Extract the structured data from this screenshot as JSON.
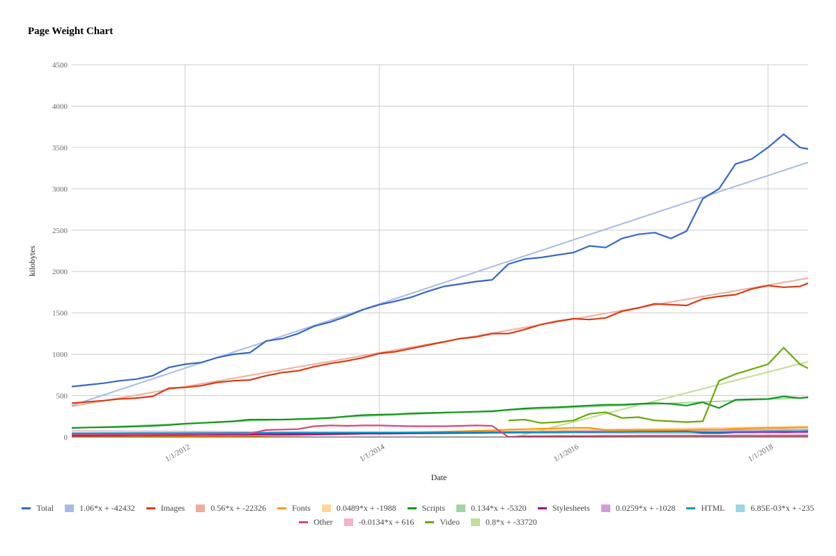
{
  "chart_data": {
    "type": "line",
    "title": "Page Weight Chart",
    "x_label": "Date",
    "y_label": "kilobytes",
    "grid": true,
    "ylim": [
      0,
      4500
    ],
    "yticks": [
      0,
      500,
      1000,
      1500,
      2000,
      2500,
      3000,
      3500,
      4000,
      4500
    ],
    "xlim": [
      "11/1/2010",
      "6/1/2018"
    ],
    "xticks": [
      "1/1/2012",
      "1/1/2014",
      "1/1/2016",
      "1/1/2018"
    ],
    "x": [
      "11/1/2010",
      "1/1/2011",
      "3/1/2011",
      "5/1/2011",
      "7/1/2011",
      "9/1/2011",
      "11/1/2011",
      "1/1/2012",
      "3/1/2012",
      "5/1/2012",
      "7/1/2012",
      "9/1/2012",
      "11/1/2012",
      "1/1/2013",
      "3/1/2013",
      "5/1/2013",
      "7/1/2013",
      "9/1/2013",
      "11/1/2013",
      "1/1/2014",
      "3/1/2014",
      "5/1/2014",
      "7/1/2014",
      "9/1/2014",
      "11/1/2014",
      "1/1/2015",
      "3/1/2015",
      "5/1/2015",
      "7/1/2015",
      "9/1/2015",
      "11/1/2015",
      "1/1/2016",
      "3/1/2016",
      "5/1/2016",
      "7/1/2016",
      "9/1/2016",
      "11/1/2016",
      "1/1/2017",
      "3/1/2017",
      "5/1/2017",
      "7/1/2017",
      "9/1/2017",
      "11/1/2017",
      "1/1/2018",
      "3/1/2018",
      "5/1/2018",
      "6/1/2018"
    ],
    "series": [
      {
        "name": "Total",
        "color": "#3366cc",
        "values": [
          610,
          630,
          650,
          680,
          700,
          740,
          840,
          880,
          900,
          960,
          1000,
          1020,
          1160,
          1190,
          1250,
          1340,
          1390,
          1460,
          1540,
          1600,
          1640,
          1690,
          1760,
          1820,
          1850,
          1880,
          1900,
          2090,
          2150,
          2170,
          2200,
          2230,
          2310,
          2290,
          2400,
          2450,
          2470,
          2400,
          2490,
          2880,
          3000,
          3300,
          3360,
          3500,
          3660,
          3500,
          3480
        ]
      },
      {
        "name": "Images",
        "color": "#dc3912",
        "values": [
          410,
          425,
          440,
          460,
          470,
          490,
          590,
          600,
          620,
          660,
          680,
          690,
          740,
          780,
          800,
          850,
          890,
          920,
          960,
          1010,
          1030,
          1070,
          1110,
          1150,
          1190,
          1210,
          1250,
          1250,
          1300,
          1360,
          1400,
          1430,
          1420,
          1440,
          1520,
          1560,
          1610,
          1600,
          1590,
          1670,
          1700,
          1720,
          1790,
          1830,
          1810,
          1820,
          1860
        ]
      },
      {
        "name": "Fonts",
        "color": "#ff9900",
        "values": [
          5,
          5,
          5,
          5,
          5,
          8,
          8,
          10,
          10,
          10,
          12,
          12,
          15,
          18,
          20,
          25,
          30,
          35,
          40,
          45,
          50,
          55,
          60,
          65,
          70,
          75,
          80,
          90,
          95,
          100,
          105,
          110,
          110,
          85,
          85,
          85,
          85,
          85,
          85,
          90,
          90,
          100,
          105,
          110,
          110,
          115,
          115
        ]
      },
      {
        "name": "Scripts",
        "color": "#109618",
        "values": [
          110,
          115,
          118,
          122,
          128,
          135,
          145,
          160,
          170,
          180,
          190,
          210,
          210,
          210,
          215,
          220,
          230,
          250,
          265,
          270,
          275,
          285,
          290,
          295,
          300,
          305,
          310,
          330,
          345,
          355,
          360,
          370,
          380,
          390,
          390,
          400,
          410,
          400,
          380,
          420,
          350,
          450,
          455,
          460,
          490,
          470,
          480
        ]
      },
      {
        "name": "Stylesheets",
        "color": "#990099",
        "values": [
          20,
          20,
          22,
          22,
          24,
          24,
          26,
          26,
          28,
          28,
          30,
          30,
          32,
          32,
          34,
          35,
          36,
          38,
          40,
          40,
          42,
          44,
          45,
          46,
          48,
          50,
          52,
          54,
          55,
          56,
          58,
          60,
          60,
          62,
          62,
          64,
          65,
          66,
          68,
          50,
          50,
          60,
          60,
          62,
          60,
          62,
          62
        ]
      },
      {
        "name": "HTML",
        "color": "#0099c6",
        "values": [
          45,
          45,
          46,
          46,
          47,
          47,
          48,
          48,
          49,
          49,
          50,
          50,
          50,
          51,
          51,
          52,
          52,
          53,
          53,
          54,
          54,
          55,
          55,
          56,
          56,
          57,
          57,
          58,
          58,
          59,
          60,
          60,
          61,
          62,
          62,
          63,
          63,
          64,
          64,
          60,
          60,
          65,
          66,
          68,
          70,
          70,
          72
        ]
      },
      {
        "name": "Other",
        "color": "#dd4477",
        "values": [
          30,
          30,
          32,
          32,
          33,
          34,
          35,
          36,
          38,
          40,
          40,
          42,
          85,
          90,
          95,
          130,
          140,
          135,
          140,
          140,
          135,
          130,
          130,
          130,
          135,
          140,
          135,
          0,
          10,
          10,
          12,
          12,
          12,
          14,
          14,
          15,
          15,
          15,
          15,
          15,
          15,
          15,
          15,
          15,
          15,
          15,
          15
        ]
      },
      {
        "name": "Video",
        "color": "#66aa00",
        "values": [
          null,
          null,
          null,
          null,
          null,
          null,
          null,
          null,
          null,
          null,
          null,
          null,
          null,
          null,
          null,
          null,
          null,
          null,
          null,
          null,
          null,
          null,
          null,
          null,
          null,
          null,
          null,
          200,
          210,
          170,
          180,
          200,
          280,
          300,
          230,
          240,
          200,
          190,
          180,
          190,
          680,
          760,
          820,
          880,
          1080,
          880,
          830
        ]
      }
    ],
    "trendlines": [
      {
        "name": "1.06*x + -42432",
        "color": "#a5bbe8",
        "x": [
          "11/1/2010",
          "6/1/2018"
        ],
        "values": [
          380,
          3320
        ]
      },
      {
        "name": "0.56*x + -22326",
        "color": "#f0ad9d",
        "x": [
          "11/1/2010",
          "6/1/2018"
        ],
        "values": [
          370,
          1920
        ]
      },
      {
        "name": "0.0489*x + -1988",
        "color": "#ffd49a",
        "x": [
          "11/1/2010",
          "6/1/2018"
        ],
        "values": [
          -8,
          127
        ]
      },
      {
        "name": "0.134*x + -5320",
        "color": "#9fd5a2",
        "x": [
          "11/1/2010",
          "6/1/2018"
        ],
        "values": [
          105,
          476
        ]
      },
      {
        "name": "0.0259*x + -1028",
        "color": "#d59bd5",
        "x": [
          "11/1/2010",
          "6/1/2018"
        ],
        "values": [
          20,
          92
        ]
      },
      {
        "name": "6.85E-03*x + -235",
        "color": "#99d6e8",
        "x": [
          "11/1/2010",
          "6/1/2018"
        ],
        "values": [
          42,
          61
        ]
      },
      {
        "name": "-0.0134*x + 616",
        "color": "#f1b4c9",
        "x": [
          "11/1/2010",
          "6/1/2018"
        ],
        "values": [
          73,
          36
        ]
      },
      {
        "name": "0.8*x + -33720",
        "color": "#c2dd99",
        "x": [
          "5/25/2015",
          "6/1/2018"
        ],
        "values": [
          0,
          910
        ]
      }
    ]
  }
}
